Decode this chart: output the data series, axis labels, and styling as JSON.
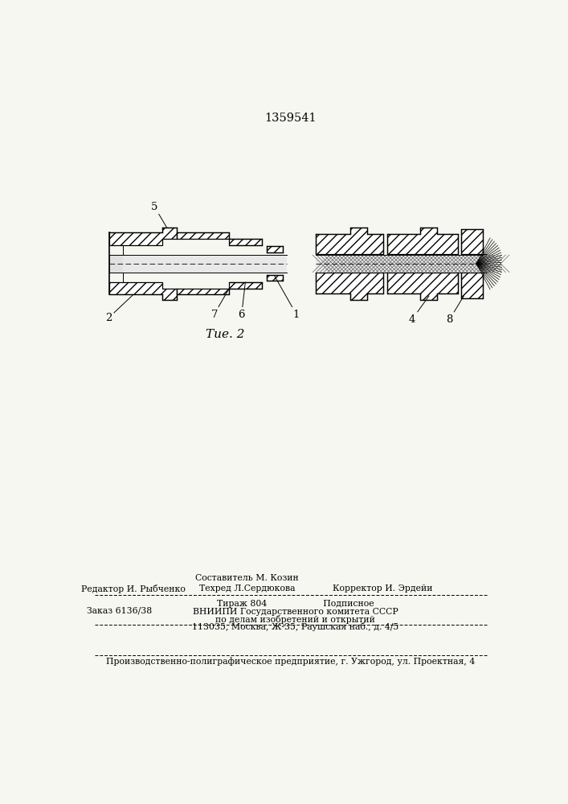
{
  "patent_number": "1359541",
  "fig_label": "Τие. 2",
  "bg_color": "#f7f7f2",
  "lc": "#111111",
  "footer": {
    "editor": "Редактор И. Рыбченко",
    "composer": "Составитель М. Козин",
    "techred": "Техред Л.Сердюкова",
    "corrector": "Корректор И. Эрдейи",
    "order": "Заказ 6136/38",
    "circulation": "Тираж 804",
    "podpisnoe": "Подписное",
    "vniip1": "ВНИИПИ Государственного комитета СССР",
    "vniip2": "по делам изобретений и открытий",
    "vniip3": "113035, Москва, Ж-35, Раушская наб., д. 4/5",
    "printer": "Производственно-полиграфическое предприятие, г. Ужгород, ул. Проектная, 4"
  }
}
